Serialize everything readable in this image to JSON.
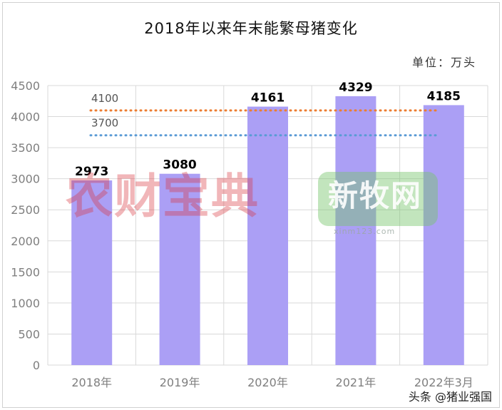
{
  "header": {
    "title": "2018年以来年末能繁母猪变化",
    "unit": "单位：万头"
  },
  "footer": {
    "credit": "头条 @猪业强国"
  },
  "watermarks": {
    "left_text": "农财宝典",
    "right_text": "新牧网",
    "right_subtext": "xinm123.com"
  },
  "colors": {
    "bar": "#ab9ff5",
    "ref_line_4100": "#ed7d31",
    "ref_line_3700": "#5b9bd5",
    "grid": "#d9d9d9",
    "axis_text": "#7f7f7f"
  },
  "chart_data": {
    "type": "bar",
    "title": "2018年以来年末能繁母猪变化",
    "unit": "单位：万头",
    "categories": [
      "2018年",
      "2019年",
      "2020年",
      "2021年",
      "2022年3月"
    ],
    "values": [
      2973,
      3080,
      4161,
      4329,
      4185
    ],
    "data_labels": [
      "2973",
      "3080",
      "4161",
      "4329",
      "4185"
    ],
    "ylim": [
      0,
      4500
    ],
    "yticks": [
      0,
      500,
      1000,
      1500,
      2000,
      2500,
      3000,
      3500,
      4000,
      4500
    ],
    "ytick_labels": [
      "0",
      "500",
      "1000",
      "1500",
      "2000",
      "2500",
      "3000",
      "3500",
      "4000",
      "4500"
    ],
    "grid": true,
    "reference_lines": [
      {
        "value": 4100,
        "label": "4100",
        "color": "#ed7d31",
        "style": "dotted"
      },
      {
        "value": 3700,
        "label": "3700",
        "color": "#5b9bd5",
        "style": "dotted"
      }
    ]
  }
}
